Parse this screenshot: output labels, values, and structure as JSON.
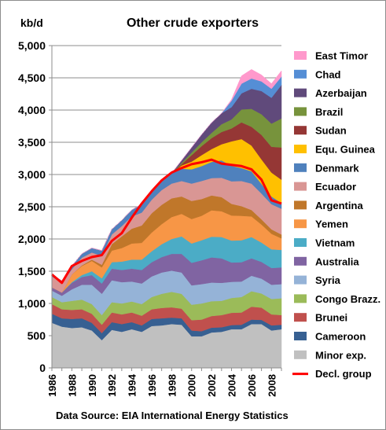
{
  "chart_data": {
    "type": "area",
    "stacked": true,
    "title": "Other crude exporters",
    "ylabel": "kb/d",
    "source": "Data Source: EIA International Energy Statistics",
    "ylim": [
      0,
      5000
    ],
    "yticks": [
      "0",
      "500",
      "1,000",
      "1,500",
      "2,000",
      "2,500",
      "3,000",
      "3,500",
      "4,000",
      "4,500",
      "5,000"
    ],
    "ytick_values": [
      0,
      500,
      1000,
      1500,
      2000,
      2500,
      3000,
      3500,
      4000,
      4500,
      5000
    ],
    "x": [
      1986,
      1987,
      1988,
      1989,
      1990,
      1991,
      1992,
      1993,
      1994,
      1995,
      1996,
      1997,
      1998,
      1999,
      2000,
      2001,
      2002,
      2003,
      2004,
      2005,
      2006,
      2007,
      2008,
      2009
    ],
    "xticks": [
      "1986",
      "1988",
      "1990",
      "1992",
      "1994",
      "1996",
      "1998",
      "2000",
      "2002",
      "2004",
      "2006",
      "2008"
    ],
    "xtick_values": [
      1986,
      1988,
      1990,
      1992,
      1994,
      1996,
      1998,
      2000,
      2002,
      2004,
      2006,
      2008
    ],
    "grid": "horizontal",
    "legend_position": "right",
    "series": [
      {
        "name": "Minor exp.",
        "color": "#c0c0c0",
        "values": [
          700,
          640,
          620,
          630,
          580,
          430,
          590,
          560,
          600,
          560,
          650,
          660,
          680,
          670,
          490,
          490,
          550,
          560,
          600,
          600,
          680,
          680,
          580,
          600
        ]
      },
      {
        "name": "Cameroon",
        "color": "#376092",
        "values": [
          140,
          130,
          140,
          140,
          120,
          110,
          120,
          120,
          110,
          100,
          110,
          110,
          100,
          100,
          90,
          80,
          75,
          70,
          65,
          70,
          70,
          65,
          80,
          70
        ]
      },
      {
        "name": "Brunei",
        "color": "#c0504d",
        "values": [
          150,
          140,
          140,
          140,
          140,
          130,
          150,
          150,
          150,
          150,
          150,
          160,
          160,
          150,
          160,
          180,
          180,
          190,
          190,
          190,
          200,
          190,
          170,
          150
        ]
      },
      {
        "name": "Congo Brazz.",
        "color": "#9bbb59",
        "values": [
          110,
          110,
          140,
          150,
          150,
          150,
          160,
          170,
          170,
          180,
          190,
          220,
          240,
          230,
          240,
          250,
          230,
          220,
          230,
          240,
          240,
          220,
          240,
          260
        ]
      },
      {
        "name": "Syria",
        "color": "#95b3d7",
        "values": [
          100,
          100,
          180,
          230,
          300,
          330,
          340,
          330,
          310,
          320,
          320,
          330,
          330,
          330,
          300,
          300,
          290,
          280,
          250,
          240,
          240,
          230,
          220,
          220
        ]
      },
      {
        "name": "Australia",
        "color": "#8064a2",
        "values": [
          50,
          50,
          100,
          120,
          150,
          160,
          180,
          190,
          200,
          210,
          220,
          240,
          260,
          290,
          350,
          370,
          390,
          380,
          300,
          300,
          270,
          260,
          260,
          260
        ]
      },
      {
        "name": "Vietnam",
        "color": "#4bacc6",
        "values": [
          0,
          0,
          10,
          30,
          60,
          80,
          100,
          130,
          140,
          160,
          170,
          200,
          230,
          270,
          300,
          310,
          320,
          330,
          340,
          340,
          330,
          300,
          290,
          270
        ]
      },
      {
        "name": "Yemen",
        "color": "#f79646",
        "values": [
          0,
          0,
          120,
          140,
          160,
          170,
          180,
          210,
          250,
          260,
          290,
          310,
          340,
          350,
          380,
          380,
          410,
          400,
          390,
          380,
          320,
          280,
          240,
          180
        ]
      },
      {
        "name": "Argentina",
        "color": "#c0772a",
        "values": [
          0,
          0,
          0,
          10,
          20,
          40,
          100,
          180,
          230,
          270,
          300,
          300,
          290,
          270,
          280,
          260,
          230,
          220,
          180,
          150,
          100,
          80,
          70,
          60
        ]
      },
      {
        "name": "Ecuador",
        "color": "#d99694",
        "values": [
          170,
          150,
          80,
          120,
          110,
          140,
          150,
          160,
          190,
          200,
          210,
          230,
          230,
          240,
          270,
          280,
          270,
          300,
          350,
          390,
          410,
          400,
          390,
          400
        ]
      },
      {
        "name": "Denmark",
        "color": "#4f81bd",
        "values": [
          30,
          30,
          50,
          60,
          70,
          80,
          80,
          90,
          100,
          130,
          130,
          150,
          160,
          190,
          220,
          230,
          250,
          270,
          240,
          200,
          190,
          150,
          120,
          90
        ]
      },
      {
        "name": "Equ. Guinea",
        "color": "#ffc000",
        "values": [
          0,
          0,
          0,
          0,
          0,
          0,
          0,
          0,
          0,
          0,
          0,
          0,
          0,
          50,
          120,
          170,
          200,
          250,
          380,
          450,
          400,
          380,
          370,
          360
        ]
      },
      {
        "name": "Sudan",
        "color": "#953735",
        "values": [
          0,
          0,
          0,
          0,
          0,
          0,
          0,
          0,
          0,
          0,
          0,
          0,
          0,
          20,
          100,
          140,
          170,
          190,
          200,
          260,
          290,
          380,
          400,
          500
        ]
      },
      {
        "name": "Brazil",
        "color": "#77933c",
        "values": [
          0,
          0,
          0,
          0,
          0,
          0,
          0,
          0,
          0,
          0,
          0,
          0,
          0,
          20,
          40,
          60,
          80,
          120,
          140,
          200,
          280,
          320,
          360,
          450
        ]
      },
      {
        "name": "Azerbaijan",
        "color": "#604a7b",
        "values": [
          0,
          0,
          0,
          0,
          0,
          0,
          0,
          0,
          0,
          0,
          0,
          0,
          0,
          40,
          80,
          120,
          160,
          170,
          190,
          250,
          310,
          360,
          400,
          520
        ]
      },
      {
        "name": "Chad",
        "color": "#558ed5",
        "values": [
          0,
          0,
          0,
          0,
          0,
          0,
          0,
          0,
          0,
          0,
          0,
          0,
          0,
          0,
          0,
          0,
          0,
          0,
          100,
          150,
          160,
          150,
          140,
          130
        ]
      },
      {
        "name": "East Timor",
        "color": "#ff99cc",
        "values": [
          0,
          0,
          0,
          0,
          0,
          0,
          0,
          0,
          0,
          0,
          0,
          0,
          0,
          0,
          0,
          0,
          0,
          0,
          20,
          120,
          140,
          100,
          80,
          90
        ]
      }
    ],
    "line_series": {
      "name": "Decl. group",
      "color": "#ff0000",
      "values": [
        1450,
        1320,
        1580,
        1660,
        1720,
        1750,
        1970,
        2090,
        2330,
        2550,
        2740,
        2910,
        3030,
        3100,
        3160,
        3190,
        3230,
        3170,
        3150,
        3130,
        3080,
        2920,
        2600,
        2550
      ]
    }
  }
}
